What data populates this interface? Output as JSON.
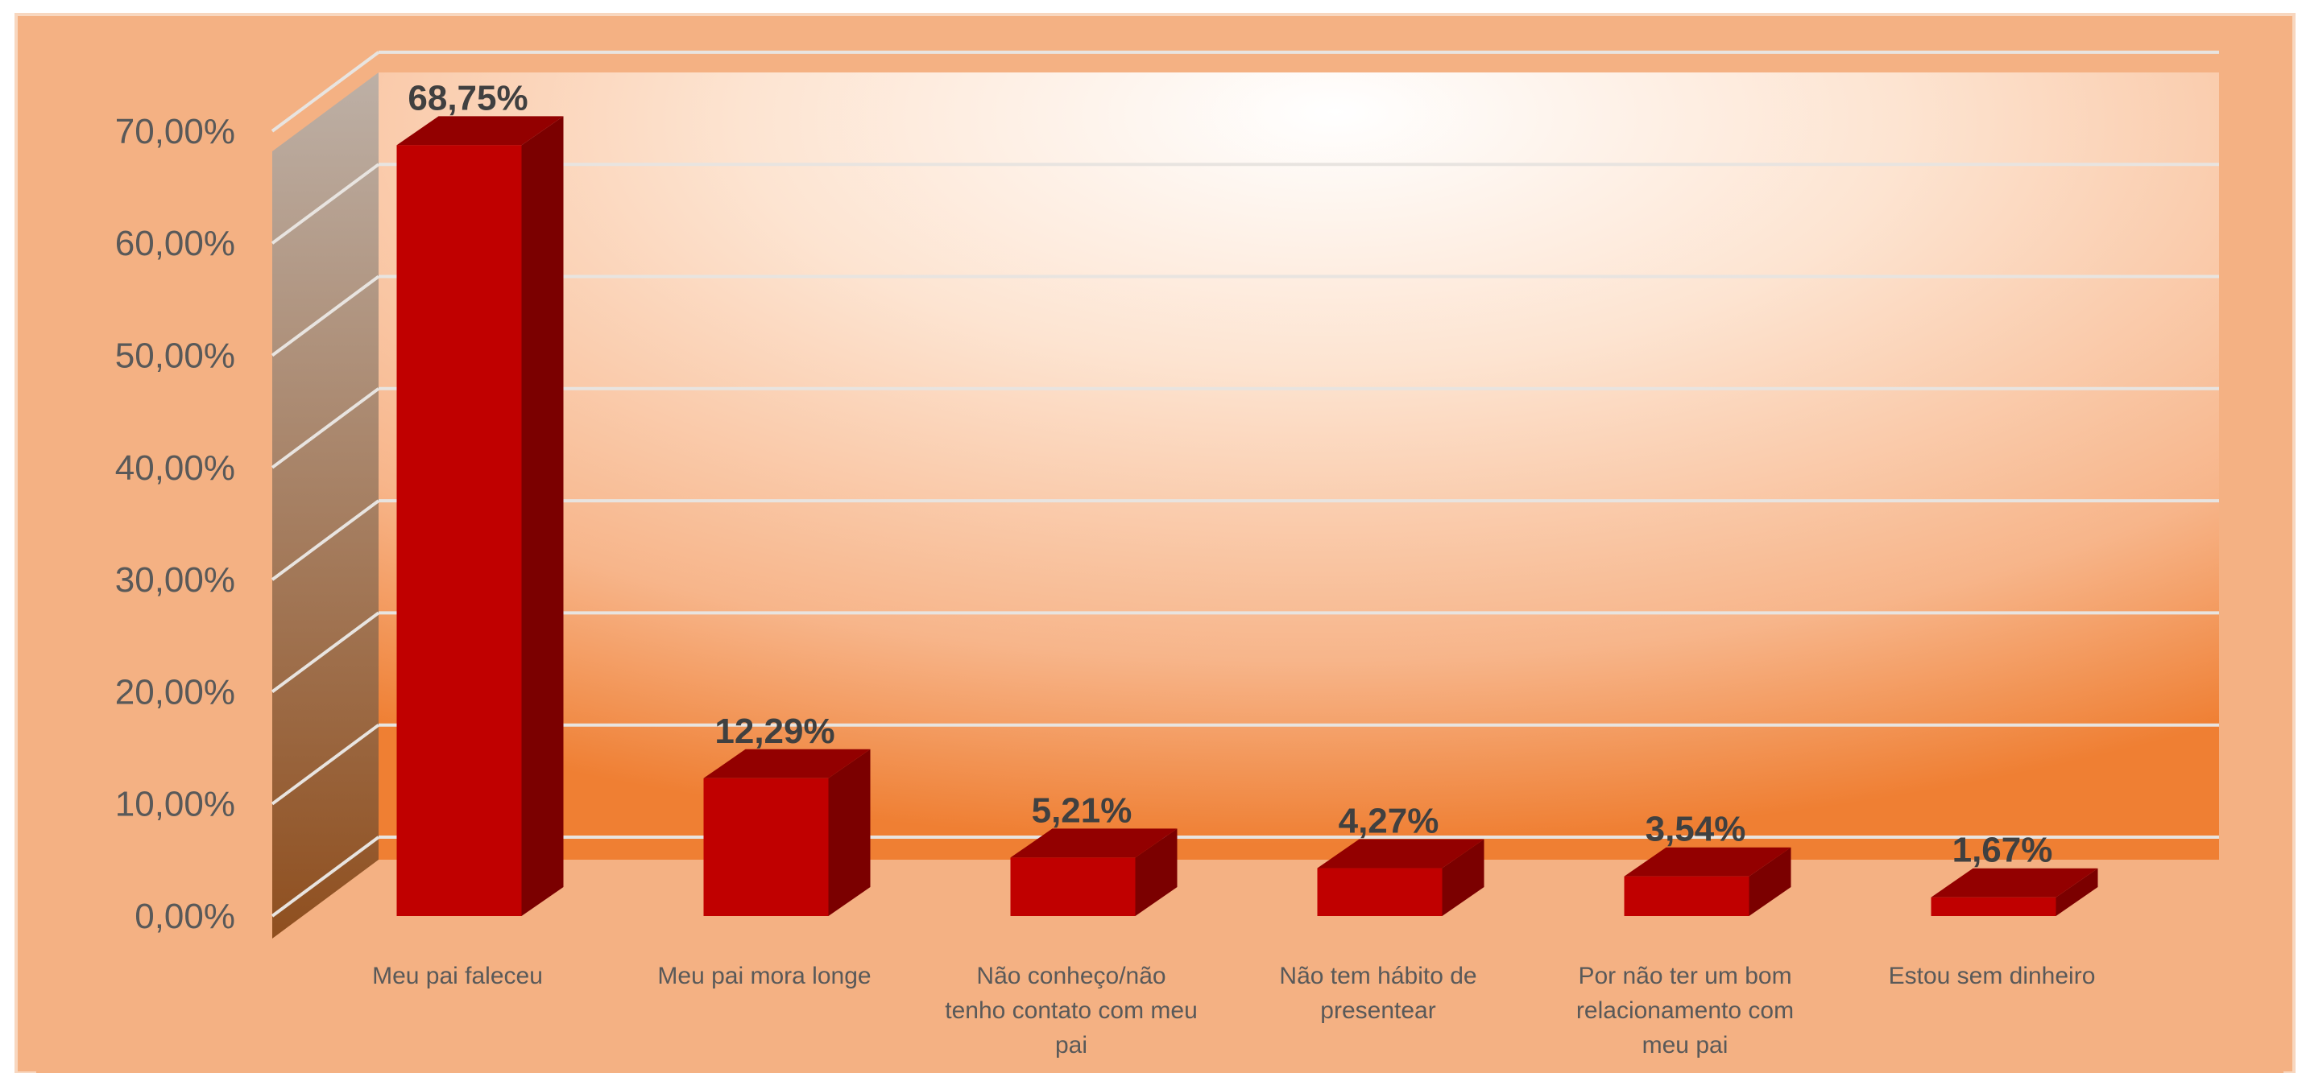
{
  "chart_data": {
    "type": "bar",
    "title": "",
    "xlabel": "",
    "ylabel": "",
    "categories": [
      [
        "Meu pai faleceu"
      ],
      [
        "Meu pai mora longe"
      ],
      [
        "Não conheço/não",
        "tenho contato com meu",
        "pai"
      ],
      [
        "Não tem hábito de",
        "presentear"
      ],
      [
        "Por não ter um bom",
        "relacionamento com",
        "meu pai"
      ],
      [
        "Estou sem dinheiro"
      ]
    ],
    "values": [
      68.75,
      12.29,
      5.21,
      4.27,
      3.54,
      1.67
    ],
    "value_labels": [
      "68,75%",
      "12,29%",
      "5,21%",
      "4,27%",
      "3,54%",
      "1,67%"
    ],
    "ylim": [
      0,
      70
    ],
    "yticks": [
      0,
      10,
      20,
      30,
      40,
      50,
      60,
      70
    ],
    "ytick_labels": [
      "0,00%",
      "10,00%",
      "20,00%",
      "30,00%",
      "40,00%",
      "50,00%",
      "60,00%",
      "70,00%"
    ],
    "grid": true,
    "legend": "none",
    "style": "3d-column",
    "colors": {
      "bar_front": "#c00000",
      "bar_side": "#7b0000",
      "bar_top": "#930000",
      "plot_bg_center": "#ffffff",
      "plot_bg_edge": "#f08c45",
      "chart_bg": "#f4b183",
      "side_wall_top": "#b9aba0",
      "side_wall_bottom": "#8a4a1a",
      "gridline": "#e8e4e0"
    }
  }
}
